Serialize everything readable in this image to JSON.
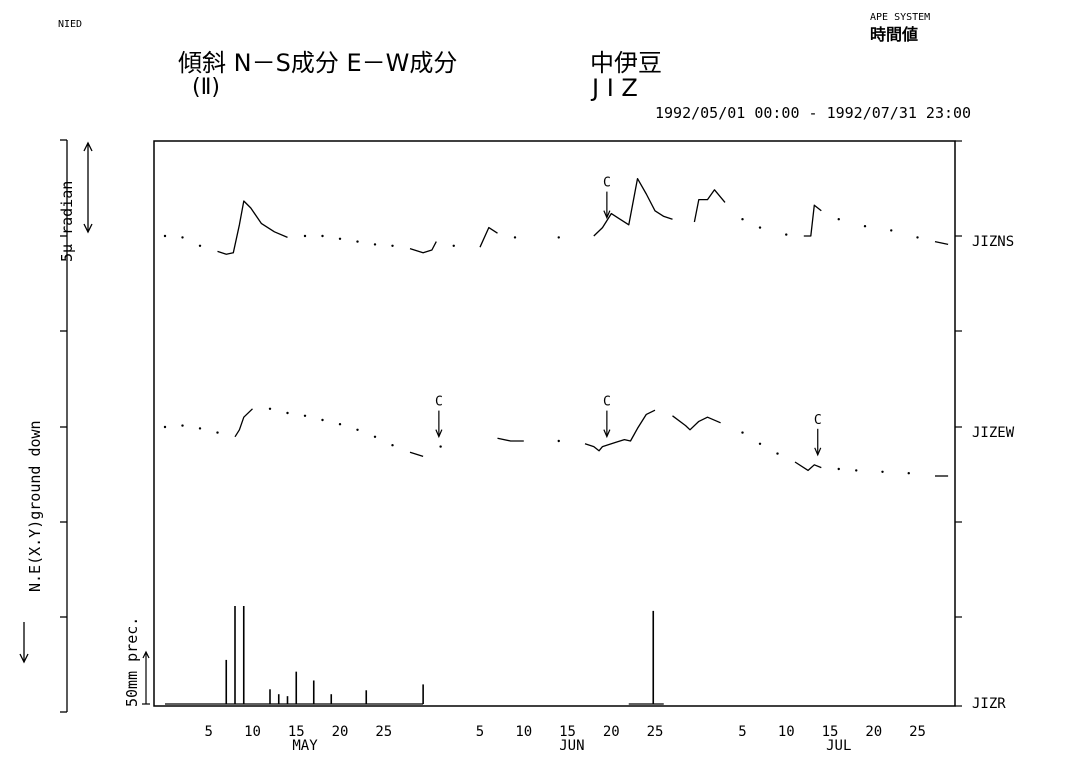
{
  "header": {
    "org": "NIED",
    "system": "APE SYSTEM",
    "system_sub": "時間値",
    "title_line1": "傾斜  N－S成分  E－W成分",
    "title_line2": "(Ⅱ)",
    "site_jp": "中伊豆",
    "site_code": "J I Z",
    "period": "1992/05/01 00:00 - 1992/07/31 23:00"
  },
  "left_axis": {
    "scale_label": "5μ radian",
    "direction_label": "N.E(X.Y)ground down"
  },
  "chart_data": {
    "type": "line",
    "x_unit": "date (hourly values)",
    "x_range": [
      "1992-05-01",
      "1992-07-31"
    ],
    "x_ticks": [
      "5",
      "10",
      "15",
      "20",
      "25",
      "5",
      "10",
      "15",
      "20",
      "25",
      "5",
      "10",
      "15",
      "20",
      "25"
    ],
    "x_tick_days": [
      5,
      10,
      15,
      20,
      25,
      36,
      41,
      46,
      51,
      56,
      66,
      71,
      76,
      81,
      86
    ],
    "months": [
      {
        "label": "MAY",
        "center_day": 16
      },
      {
        "label": "JUN",
        "center_day": 46.5
      },
      {
        "label": "JUL",
        "center_day": 77
      }
    ],
    "month_boundaries": [
      31,
      61
    ],
    "series": [
      {
        "name": "JIZNS",
        "unit": "μ radian (5μ radian per division)",
        "values_day_offset": [
          [
            0,
            0.0
          ],
          [
            2,
            -0.05
          ],
          [
            4,
            -0.35
          ],
          [
            6,
            -0.55
          ],
          [
            7,
            -0.65
          ],
          [
            7.8,
            -0.6
          ],
          [
            8.5,
            0.4
          ],
          [
            9,
            1.25
          ],
          [
            9.8,
            1.0
          ],
          [
            11,
            0.45
          ],
          [
            12.5,
            0.15
          ],
          [
            14,
            -0.05
          ],
          [
            16,
            0.0
          ],
          [
            18,
            0.0
          ],
          [
            20,
            -0.1
          ],
          [
            22,
            -0.2
          ],
          [
            24,
            -0.3
          ],
          [
            26,
            -0.35
          ],
          [
            28,
            -0.45
          ],
          [
            29.5,
            -0.6
          ],
          [
            30.5,
            -0.5
          ],
          [
            31,
            -0.2
          ],
          [
            33,
            -0.35
          ],
          [
            36,
            -0.4
          ],
          [
            37,
            0.3
          ],
          [
            38,
            0.1
          ],
          [
            40,
            -0.05
          ],
          [
            45,
            -0.05
          ],
          [
            49,
            0.0
          ],
          [
            50,
            0.3
          ],
          [
            51,
            0.8
          ],
          [
            52,
            0.6
          ],
          [
            53,
            0.4
          ],
          [
            54,
            2.05
          ],
          [
            55,
            1.5
          ],
          [
            56,
            0.9
          ],
          [
            57,
            0.7
          ],
          [
            58,
            0.6
          ],
          [
            60.5,
            0.5
          ],
          [
            61,
            1.3
          ],
          [
            62,
            1.3
          ],
          [
            62.8,
            1.65
          ],
          [
            64,
            1.2
          ],
          [
            66,
            0.6
          ],
          [
            68,
            0.3
          ],
          [
            71,
            0.05
          ],
          [
            73,
            0.0
          ],
          [
            73.8,
            0.0
          ],
          [
            74.2,
            1.1
          ],
          [
            75,
            0.9
          ],
          [
            77,
            0.6
          ],
          [
            80,
            0.35
          ],
          [
            83,
            0.2
          ],
          [
            86,
            -0.05
          ],
          [
            88,
            -0.2
          ],
          [
            89.5,
            -0.3
          ]
        ]
      },
      {
        "name": "JIZEW",
        "unit": "μ radian (5μ radian per division)",
        "values_day_offset": [
          [
            0,
            0.0
          ],
          [
            2,
            0.05
          ],
          [
            4,
            -0.05
          ],
          [
            6,
            -0.2
          ],
          [
            8,
            -0.35
          ],
          [
            8.5,
            -0.1
          ],
          [
            9,
            0.35
          ],
          [
            10,
            0.65
          ],
          [
            12,
            0.65
          ],
          [
            14,
            0.5
          ],
          [
            16,
            0.4
          ],
          [
            18,
            0.25
          ],
          [
            20,
            0.1
          ],
          [
            22,
            -0.1
          ],
          [
            24,
            -0.35
          ],
          [
            26,
            -0.65
          ],
          [
            28,
            -0.9
          ],
          [
            29.5,
            -1.05
          ],
          [
            31.5,
            -0.7
          ],
          [
            38,
            -0.4
          ],
          [
            39.5,
            -0.5
          ],
          [
            41,
            -0.5
          ],
          [
            45,
            -0.5
          ],
          [
            48,
            -0.6
          ],
          [
            49,
            -0.7
          ],
          [
            49.6,
            -0.85
          ],
          [
            50,
            -0.7
          ],
          [
            51.5,
            -0.55
          ],
          [
            52.5,
            -0.45
          ],
          [
            53.2,
            -0.5
          ],
          [
            54,
            -0.05
          ],
          [
            55,
            0.45
          ],
          [
            56,
            0.6
          ],
          [
            58,
            0.4
          ],
          [
            59.5,
            0.05
          ],
          [
            60,
            -0.1
          ],
          [
            61,
            0.2
          ],
          [
            62,
            0.35
          ],
          [
            63.5,
            0.15
          ],
          [
            66,
            -0.2
          ],
          [
            68,
            -0.6
          ],
          [
            70,
            -0.95
          ],
          [
            72,
            -1.25
          ],
          [
            73.5,
            -1.55
          ],
          [
            74.2,
            -1.35
          ],
          [
            75,
            -1.45
          ],
          [
            77,
            -1.5
          ],
          [
            79,
            -1.55
          ],
          [
            82,
            -1.6
          ],
          [
            85,
            -1.65
          ],
          [
            88,
            -1.75
          ],
          [
            89.5,
            -1.75
          ]
        ]
      },
      {
        "name": "JIZR",
        "unit": "mm precipitation (50mm per division)",
        "type": "bar",
        "bars": [
          [
            7,
            45
          ],
          [
            8,
            100
          ],
          [
            9,
            100
          ],
          [
            12,
            15
          ],
          [
            13,
            10
          ],
          [
            14,
            8
          ],
          [
            15,
            33
          ],
          [
            17,
            24
          ],
          [
            19,
            10
          ],
          [
            23,
            14
          ],
          [
            29.5,
            20
          ],
          [
            55.8,
            95
          ]
        ],
        "flat_segments": [
          [
            0,
            29.5
          ],
          [
            53,
            57
          ]
        ]
      }
    ],
    "annotations": [
      {
        "label": "C",
        "series": "JIZNS",
        "day": 50.5
      },
      {
        "label": "C",
        "series": "JIZEW",
        "day": 31.3
      },
      {
        "label": "C",
        "series": "JIZEW",
        "day": 50.5
      },
      {
        "label": "C",
        "series": "JIZEW",
        "day": 74.6
      }
    ],
    "left_scale_labels": {
      "tilt": "5μ radian",
      "rain": "50mm prec."
    },
    "grid": false
  }
}
